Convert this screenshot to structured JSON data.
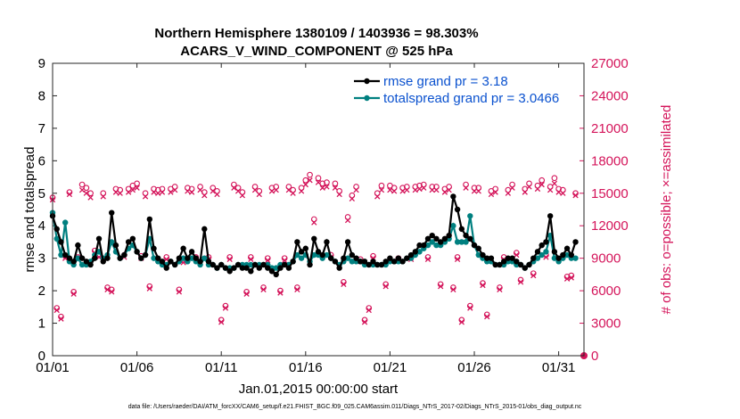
{
  "chart_data": {
    "type": "line",
    "title_line1": "Northern Hemisphere 1380109 / 1403936 = 98.303%",
    "title_line2": "ACARS_V_WIND_COMPONENT @ 525 hPa",
    "xlabel": "Jan.01,2015 00:00:00 start",
    "ylabel_left": "rmse and totalspread",
    "ylabel_right": "# of obs: o=possible; ×=assimilated",
    "footer": "data file: /Users/raeder/DAI/ATM_forcXX/CAM6_setup/f.e21.FHIST_BGC.f09_025.CAM6assim.011/Diags_NTrS_2017-02/Diags_NTrS_2015-01/obs_diag_output.nc",
    "xlim": [
      0,
      31.5
    ],
    "ylim_left": [
      0,
      9
    ],
    "ylim_right": [
      0,
      27000
    ],
    "x_ticks": [
      0,
      5,
      10,
      15,
      20,
      25,
      30
    ],
    "x_tick_labels": [
      "01/01",
      "01/06",
      "01/11",
      "01/16",
      "01/21",
      "01/26",
      "01/31"
    ],
    "y_left_ticks": [
      "0",
      "1",
      "2",
      "3",
      "4",
      "5",
      "6",
      "7",
      "8",
      "9"
    ],
    "y_right_ticks": [
      "0",
      "3000",
      "6000",
      "9000",
      "12000",
      "15000",
      "18000",
      "21000",
      "24000",
      "27000"
    ],
    "colors": {
      "rmse": "#000000",
      "spread": "#008080",
      "obs": "#d4145a",
      "legend_text": "#0b52cf",
      "axis": "#262626"
    },
    "series": [
      {
        "name": "rmse grand pr = 3.18",
        "axis": "left",
        "x": [
          0.0,
          0.25,
          0.5,
          0.75,
          1.0,
          1.25,
          1.5,
          1.75,
          2.0,
          2.25,
          2.5,
          2.75,
          3.0,
          3.25,
          3.5,
          3.75,
          4.0,
          4.25,
          4.5,
          4.75,
          5.0,
          5.25,
          5.5,
          5.75,
          6.0,
          6.25,
          6.5,
          6.75,
          7.0,
          7.25,
          7.5,
          7.75,
          8.0,
          8.25,
          8.5,
          8.75,
          9.0,
          9.25,
          9.5,
          9.75,
          10.0,
          10.25,
          10.5,
          10.75,
          11.0,
          11.25,
          11.5,
          11.75,
          12.0,
          12.25,
          12.5,
          12.75,
          13.0,
          13.25,
          13.5,
          13.75,
          14.0,
          14.25,
          14.5,
          14.75,
          15.0,
          15.25,
          15.5,
          15.75,
          16.0,
          16.25,
          16.5,
          16.75,
          17.0,
          17.25,
          17.5,
          17.75,
          18.0,
          18.25,
          18.5,
          18.75,
          19.0,
          19.25,
          19.5,
          19.75,
          20.0,
          20.25,
          20.5,
          20.75,
          21.0,
          21.25,
          21.5,
          21.75,
          22.0,
          22.25,
          22.5,
          22.75,
          23.0,
          23.25,
          23.5,
          23.75,
          24.0,
          24.25,
          24.5,
          24.75,
          25.0,
          25.25,
          25.5,
          25.75,
          26.0,
          26.25,
          26.5,
          26.75,
          27.0,
          27.25,
          27.5,
          27.75,
          28.0,
          28.25,
          28.5,
          28.75,
          29.0,
          29.25,
          29.5,
          29.75,
          30.0,
          30.25,
          30.5,
          30.75,
          31.0
        ],
        "values": [
          4.3,
          3.9,
          3.5,
          3.1,
          3.0,
          2.9,
          3.4,
          3.0,
          2.9,
          2.8,
          3.0,
          3.6,
          2.9,
          3.0,
          4.4,
          3.4,
          3.0,
          3.1,
          3.5,
          3.6,
          3.2,
          3.0,
          3.1,
          4.2,
          3.3,
          3.0,
          2.9,
          2.7,
          2.9,
          2.8,
          3.0,
          3.3,
          3.0,
          3.2,
          3.0,
          2.9,
          3.9,
          2.9,
          2.8,
          2.7,
          2.8,
          2.7,
          2.6,
          2.7,
          2.8,
          2.7,
          2.7,
          2.6,
          2.8,
          2.7,
          2.8,
          2.7,
          2.6,
          2.5,
          2.7,
          2.8,
          2.7,
          2.9,
          3.5,
          3.2,
          3.3,
          2.8,
          3.6,
          3.2,
          3.1,
          3.5,
          3.0,
          2.9,
          2.7,
          3.0,
          3.5,
          3.1,
          3.0,
          2.9,
          2.9,
          2.8,
          2.9,
          2.8,
          2.8,
          2.9,
          3.0,
          2.9,
          3.0,
          2.9,
          3.0,
          3.1,
          3.2,
          3.4,
          3.4,
          3.6,
          3.7,
          3.6,
          3.5,
          3.6,
          3.7,
          4.9,
          4.5,
          3.9,
          3.7,
          3.6,
          3.4,
          3.3,
          3.1,
          3.0,
          3.0,
          2.8,
          2.8,
          2.9,
          3.0,
          3.0,
          2.9,
          2.8,
          2.7,
          2.8,
          3.0,
          3.2,
          3.4,
          3.5,
          4.3,
          3.2,
          3.0,
          3.1,
          3.3,
          3.1,
          3.5
        ],
        "marker": "dot"
      },
      {
        "name": "totalspread grand pr = 3.0466",
        "axis": "left",
        "x": [
          0.0,
          0.25,
          0.5,
          0.75,
          1.0,
          1.25,
          1.5,
          1.75,
          2.0,
          2.25,
          2.5,
          2.75,
          3.0,
          3.25,
          3.5,
          3.75,
          4.0,
          4.25,
          4.5,
          4.75,
          5.0,
          5.25,
          5.5,
          5.75,
          6.0,
          6.25,
          6.5,
          6.75,
          7.0,
          7.25,
          7.5,
          7.75,
          8.0,
          8.25,
          8.5,
          8.75,
          9.0,
          9.25,
          9.5,
          9.75,
          10.0,
          10.25,
          10.5,
          10.75,
          11.0,
          11.25,
          11.5,
          11.75,
          12.0,
          12.25,
          12.5,
          12.75,
          13.0,
          13.25,
          13.5,
          13.75,
          14.0,
          14.25,
          14.5,
          14.75,
          15.0,
          15.25,
          15.5,
          15.75,
          16.0,
          16.25,
          16.5,
          16.75,
          17.0,
          17.25,
          17.5,
          17.75,
          18.0,
          18.25,
          18.5,
          18.75,
          19.0,
          19.25,
          19.5,
          19.75,
          20.0,
          20.25,
          20.5,
          20.75,
          21.0,
          21.25,
          21.5,
          21.75,
          22.0,
          22.25,
          22.5,
          22.75,
          23.0,
          23.25,
          23.5,
          23.75,
          24.0,
          24.25,
          24.5,
          24.75,
          25.0,
          25.25,
          25.5,
          25.75,
          26.0,
          26.25,
          26.5,
          26.75,
          27.0,
          27.25,
          27.5,
          27.75,
          28.0,
          28.25,
          28.5,
          28.75,
          29.0,
          29.25,
          29.5,
          29.75,
          30.0,
          30.25,
          30.5,
          30.75,
          31.0
        ],
        "values": [
          4.4,
          3.6,
          3.1,
          4.1,
          2.9,
          2.8,
          3.0,
          2.8,
          2.8,
          2.9,
          3.1,
          3.2,
          3.0,
          3.1,
          3.5,
          3.2,
          3.0,
          3.1,
          3.3,
          3.4,
          3.2,
          3.0,
          3.1,
          3.6,
          3.0,
          2.9,
          2.8,
          2.8,
          2.9,
          2.8,
          2.9,
          3.0,
          2.9,
          3.0,
          2.9,
          2.8,
          3.0,
          2.8,
          2.8,
          2.7,
          2.8,
          2.7,
          2.7,
          2.7,
          2.8,
          2.8,
          2.8,
          2.8,
          2.8,
          2.8,
          2.8,
          2.8,
          2.7,
          2.7,
          2.8,
          2.8,
          2.8,
          2.9,
          3.1,
          3.0,
          3.1,
          2.9,
          3.1,
          3.1,
          3.0,
          3.1,
          3.0,
          2.9,
          2.8,
          2.9,
          3.0,
          2.9,
          2.9,
          2.9,
          2.8,
          2.8,
          2.8,
          2.8,
          2.8,
          2.8,
          2.9,
          2.9,
          2.9,
          2.9,
          3.0,
          3.0,
          3.1,
          3.2,
          3.3,
          3.4,
          3.5,
          3.4,
          3.4,
          3.5,
          3.6,
          4.0,
          3.5,
          3.5,
          3.5,
          4.3,
          3.4,
          3.1,
          3.0,
          2.9,
          2.9,
          2.8,
          2.8,
          2.8,
          2.9,
          2.9,
          2.8,
          2.8,
          2.7,
          2.8,
          2.9,
          3.0,
          3.1,
          3.2,
          3.7,
          3.0,
          2.9,
          3.0,
          3.1,
          3.0,
          3.0
        ],
        "marker": "dot"
      }
    ],
    "obs_possible": {
      "name": "possible observations",
      "axis": "right",
      "x": [
        0.0,
        0.25,
        0.5,
        0.75,
        1.0,
        1.25,
        1.5,
        1.75,
        2.0,
        2.25,
        2.5,
        2.75,
        3.0,
        3.25,
        3.5,
        3.75,
        4.0,
        4.25,
        4.5,
        4.75,
        5.0,
        5.25,
        5.5,
        5.75,
        6.0,
        6.25,
        6.5,
        6.75,
        7.0,
        7.25,
        7.5,
        7.75,
        8.0,
        8.25,
        8.5,
        8.75,
        9.0,
        9.25,
        9.5,
        9.75,
        10.0,
        10.25,
        10.5,
        10.75,
        11.0,
        11.25,
        11.5,
        11.75,
        12.0,
        12.25,
        12.5,
        12.75,
        13.0,
        13.25,
        13.5,
        13.75,
        14.0,
        14.25,
        14.5,
        14.75,
        15.0,
        15.25,
        15.5,
        15.75,
        16.0,
        16.25,
        16.5,
        16.75,
        17.0,
        17.25,
        17.5,
        17.75,
        18.0,
        18.25,
        18.5,
        18.75,
        19.0,
        19.25,
        19.5,
        19.75,
        20.0,
        20.25,
        20.5,
        20.75,
        21.0,
        21.25,
        21.5,
        21.75,
        22.0,
        22.25,
        22.5,
        22.75,
        23.0,
        23.25,
        23.5,
        23.75,
        24.0,
        24.25,
        24.5,
        24.75,
        25.0,
        25.25,
        25.5,
        25.75,
        26.0,
        26.25,
        26.5,
        26.75,
        27.0,
        27.25,
        27.5,
        27.75,
        28.0,
        28.25,
        28.5,
        28.75,
        29.0,
        29.25,
        29.5,
        29.75,
        30.0,
        30.25,
        30.5,
        30.75,
        31.0
      ],
      "values": [
        14600,
        4400,
        3600,
        9200,
        15100,
        5900,
        9100,
        15800,
        15500,
        15000,
        9700,
        9300,
        15000,
        6300,
        6100,
        15400,
        15300,
        9300,
        15400,
        15700,
        15900,
        9200,
        15000,
        6400,
        15400,
        15300,
        15400,
        9100,
        15400,
        15600,
        6100,
        8800,
        15500,
        15400,
        9100,
        15600,
        15100,
        9100,
        15500,
        15200,
        3300,
        4600,
        9100,
        15800,
        15500,
        15100,
        5900,
        9100,
        15600,
        15200,
        6300,
        9000,
        15500,
        15600,
        6000,
        9000,
        15600,
        15300,
        6300,
        15500,
        16200,
        16700,
        12600,
        16400,
        15900,
        16000,
        9300,
        15900,
        15200,
        6800,
        12800,
        14800,
        15600,
        8900,
        3300,
        4400,
        9200,
        15000,
        15700,
        6600,
        15700,
        15500,
        9000,
        15500,
        15600,
        9100,
        15600,
        15700,
        15800,
        9100,
        15600,
        15600,
        6600,
        15400,
        15600,
        6300,
        9100,
        3300,
        15800,
        4600,
        15500,
        15500,
        6700,
        3800,
        15200,
        15400,
        6300,
        9100,
        15300,
        15800,
        9500,
        7000,
        15400,
        15900,
        7600,
        15700,
        16200,
        9300,
        15600,
        16400,
        15400,
        15300,
        7300,
        7400,
        15000
      ],
      "marker": "o"
    },
    "obs_assimilated": {
      "name": "assimilated observations",
      "axis": "right",
      "x": [
        0.0,
        0.25,
        0.5,
        0.75,
        1.0,
        1.25,
        1.5,
        1.75,
        2.0,
        2.25,
        2.5,
        2.75,
        3.0,
        3.25,
        3.5,
        3.75,
        4.0,
        4.25,
        4.5,
        4.75,
        5.0,
        5.25,
        5.5,
        5.75,
        6.0,
        6.25,
        6.5,
        6.75,
        7.0,
        7.25,
        7.5,
        7.75,
        8.0,
        8.25,
        8.5,
        8.75,
        9.0,
        9.25,
        9.5,
        9.75,
        10.0,
        10.25,
        10.5,
        10.75,
        11.0,
        11.25,
        11.5,
        11.75,
        12.0,
        12.25,
        12.5,
        12.75,
        13.0,
        13.25,
        13.5,
        13.75,
        14.0,
        14.25,
        14.5,
        14.75,
        15.0,
        15.25,
        15.5,
        15.75,
        16.0,
        16.25,
        16.5,
        16.75,
        17.0,
        17.25,
        17.5,
        17.75,
        18.0,
        18.25,
        18.5,
        18.75,
        19.0,
        19.25,
        19.5,
        19.75,
        20.0,
        20.25,
        20.5,
        20.75,
        21.0,
        21.25,
        21.5,
        21.75,
        22.0,
        22.25,
        22.5,
        22.75,
        23.0,
        23.25,
        23.5,
        23.75,
        24.0,
        24.25,
        24.5,
        24.75,
        25.0,
        25.25,
        25.5,
        25.75,
        26.0,
        26.25,
        26.5,
        26.75,
        27.0,
        27.25,
        27.5,
        27.75,
        28.0,
        28.25,
        28.5,
        28.75,
        29.0,
        29.25,
        29.5,
        29.75,
        30.0,
        30.25,
        30.5,
        30.75,
        31.0
      ],
      "values": [
        14400,
        4200,
        3400,
        9000,
        14900,
        5700,
        8900,
        15300,
        15000,
        14600,
        9500,
        9100,
        14700,
        6100,
        5900,
        15100,
        15000,
        9100,
        15100,
        15300,
        15500,
        9000,
        14700,
        6200,
        15100,
        15000,
        15100,
        8900,
        15100,
        15300,
        5900,
        8600,
        15200,
        15100,
        8900,
        15300,
        14800,
        8900,
        15200,
        14900,
        3100,
        4400,
        8900,
        15500,
        15200,
        14800,
        5700,
        8900,
        15300,
        14900,
        6100,
        8800,
        15200,
        15300,
        5800,
        8800,
        15300,
        15000,
        6100,
        15200,
        15800,
        16200,
        12300,
        16000,
        15500,
        15600,
        9100,
        15500,
        14900,
        6600,
        12500,
        14500,
        15300,
        8700,
        3100,
        4200,
        9000,
        14700,
        15300,
        6400,
        15300,
        15200,
        8800,
        15200,
        15300,
        8900,
        15300,
        15400,
        15500,
        8900,
        15300,
        15300,
        6400,
        15100,
        15300,
        6100,
        8900,
        3100,
        15500,
        4400,
        15200,
        15200,
        6500,
        3600,
        14900,
        15100,
        6100,
        8900,
        15000,
        15500,
        9300,
        6800,
        15100,
        15600,
        7400,
        15400,
        15800,
        9100,
        15300,
        15900,
        15100,
        15000,
        7100,
        7200,
        14800
      ],
      "marker": "x"
    }
  }
}
